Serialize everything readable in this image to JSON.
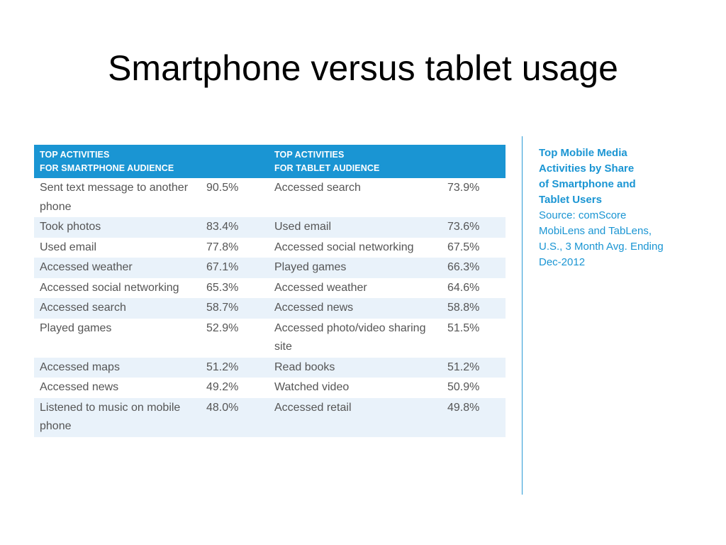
{
  "title": "Smartphone versus tablet usage",
  "table": {
    "headers": {
      "smartphone": "TOP ACTIVITIES\nFOR SMARTPHONE AUDIENCE",
      "tablet": "TOP ACTIVITIES\nFOR TABLET AUDIENCE"
    },
    "rows": [
      {
        "sp_activity": "Sent text message to another phone",
        "sp_value": "90.5%",
        "tb_activity": "Accessed search",
        "tb_value": "73.9%"
      },
      {
        "sp_activity": "Took photos",
        "sp_value": "83.4%",
        "tb_activity": "Used email",
        "tb_value": "73.6%"
      },
      {
        "sp_activity": "Used email",
        "sp_value": "77.8%",
        "tb_activity": "Accessed social networking",
        "tb_value": "67.5%"
      },
      {
        "sp_activity": "Accessed weather",
        "sp_value": "67.1%",
        "tb_activity": "Played games",
        "tb_value": "66.3%"
      },
      {
        "sp_activity": "Accessed social networking",
        "sp_value": "65.3%",
        "tb_activity": "Accessed weather",
        "tb_value": "64.6%"
      },
      {
        "sp_activity": "Accessed search",
        "sp_value": "58.7%",
        "tb_activity": "Accessed news",
        "tb_value": "58.8%"
      },
      {
        "sp_activity": "Played games",
        "sp_value": "52.9%",
        "tb_activity": "Accessed photo/video sharing site",
        "tb_value": "51.5%"
      },
      {
        "sp_activity": "Accessed maps",
        "sp_value": "51.2%",
        "tb_activity": "Read books",
        "tb_value": "51.2%"
      },
      {
        "sp_activity": "Accessed news",
        "sp_value": "49.2%",
        "tb_activity": "Watched video",
        "tb_value": "50.9%"
      },
      {
        "sp_activity": "Listened to music on mobile phone",
        "sp_value": "48.0%",
        "tb_activity": "Accessed retail",
        "tb_value": "49.8%"
      }
    ]
  },
  "caption": {
    "title": "Top Mobile Media\nActivities by Share\nof Smartphone and\nTablet Users",
    "source": "Source: comScore\nMobiLens and TabLens,\nU.S., 3 Month Avg. Ending\nDec-2012"
  },
  "colors": {
    "header_bg": "#1a95d3",
    "shaded_row_bg": "#e9f2fa",
    "caption_text": "#1a95d3",
    "body_text": "#555555"
  }
}
